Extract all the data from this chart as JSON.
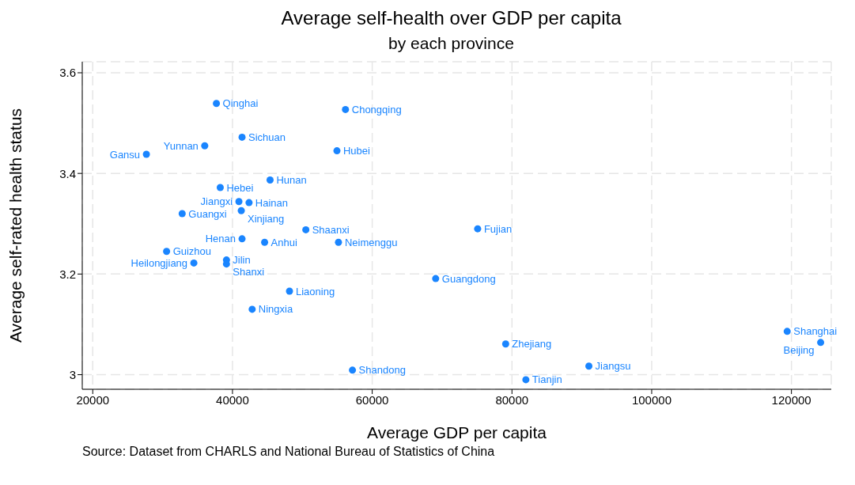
{
  "chart_data": {
    "type": "scatter",
    "title": "Average self-health over GDP per capita",
    "subtitle": "by each province",
    "xlabel": "Average GDP per capita",
    "ylabel": "Average self-rated health status",
    "color": "#1a85ff",
    "marker": "circle",
    "grid": true,
    "xlim": [
      18500,
      125700
    ],
    "xticks": [
      20000,
      40000,
      60000,
      80000,
      100000,
      120000
    ],
    "ylim": [
      2.971,
      3.622
    ],
    "yticks": [
      3,
      3.2,
      3.4,
      3.6
    ],
    "x": [
      37700,
      56170,
      41370,
      36030,
      27680,
      54950,
      45380,
      38250,
      40920,
      42370,
      41260,
      32800,
      50500,
      75090,
      41370,
      44600,
      55170,
      30570,
      39140,
      39140,
      34470,
      69080,
      48160,
      42820,
      119390,
      124180,
      79100,
      91010,
      57170,
      81990
    ],
    "values": [
      3.539,
      3.527,
      3.472,
      3.455,
      3.438,
      3.445,
      3.387,
      3.372,
      3.344,
      3.342,
      3.326,
      3.32,
      3.288,
      3.29,
      3.27,
      3.263,
      3.263,
      3.245,
      3.228,
      3.22,
      3.222,
      3.191,
      3.166,
      3.13,
      3.086,
      3.064,
      3.061,
      3.017,
      3.009,
      2.99
    ],
    "annotations": [
      {
        "text": "Qinghai",
        "x": 37700,
        "y": 3.539
      },
      {
        "text": "Chongqing",
        "x": 56170,
        "y": 3.527
      },
      {
        "text": "Sichuan",
        "x": 41370,
        "y": 3.472
      },
      {
        "text": "Yunnan",
        "x": 36030,
        "y": 3.455
      },
      {
        "text": "Gansu",
        "x": 27680,
        "y": 3.438
      },
      {
        "text": "Hubei",
        "x": 54950,
        "y": 3.445
      },
      {
        "text": "Hunan",
        "x": 45380,
        "y": 3.387
      },
      {
        "text": "Hebei",
        "x": 38250,
        "y": 3.372
      },
      {
        "text": "Jiangxi",
        "x": 40920,
        "y": 3.344
      },
      {
        "text": "Hainan",
        "x": 42370,
        "y": 3.342
      },
      {
        "text": "Xinjiang",
        "x": 41260,
        "y": 3.326
      },
      {
        "text": "Guangxi",
        "x": 32800,
        "y": 3.32
      },
      {
        "text": "Shaanxi",
        "x": 50500,
        "y": 3.288
      },
      {
        "text": "Fujian",
        "x": 75090,
        "y": 3.29
      },
      {
        "text": "Henan",
        "x": 41370,
        "y": 3.27
      },
      {
        "text": "Anhui",
        "x": 44600,
        "y": 3.263
      },
      {
        "text": "Neimenggu",
        "x": 55170,
        "y": 3.263
      },
      {
        "text": "Guizhou",
        "x": 30570,
        "y": 3.245
      },
      {
        "text": "Jilin",
        "x": 39140,
        "y": 3.228
      },
      {
        "text": "Shanxi",
        "x": 39140,
        "y": 3.22
      },
      {
        "text": "Heilongjiang",
        "x": 34470,
        "y": 3.222
      },
      {
        "text": "Guangdong",
        "x": 69080,
        "y": 3.191
      },
      {
        "text": "Liaoning",
        "x": 48160,
        "y": 3.166
      },
      {
        "text": "Ningxia",
        "x": 42820,
        "y": 3.13
      },
      {
        "text": "Shanghai",
        "x": 119390,
        "y": 3.086
      },
      {
        "text": "Beijing",
        "x": 124180,
        "y": 3.064
      },
      {
        "text": "Zhejiang",
        "x": 79100,
        "y": 3.061
      },
      {
        "text": "Jiangsu",
        "x": 91010,
        "y": 3.017
      },
      {
        "text": "Shandong",
        "x": 57170,
        "y": 3.009
      },
      {
        "text": "Tianjin",
        "x": 81990,
        "y": 2.99
      },
      "Source: Dataset from CHARLS and National Bureau of Statistics of China"
    ]
  }
}
